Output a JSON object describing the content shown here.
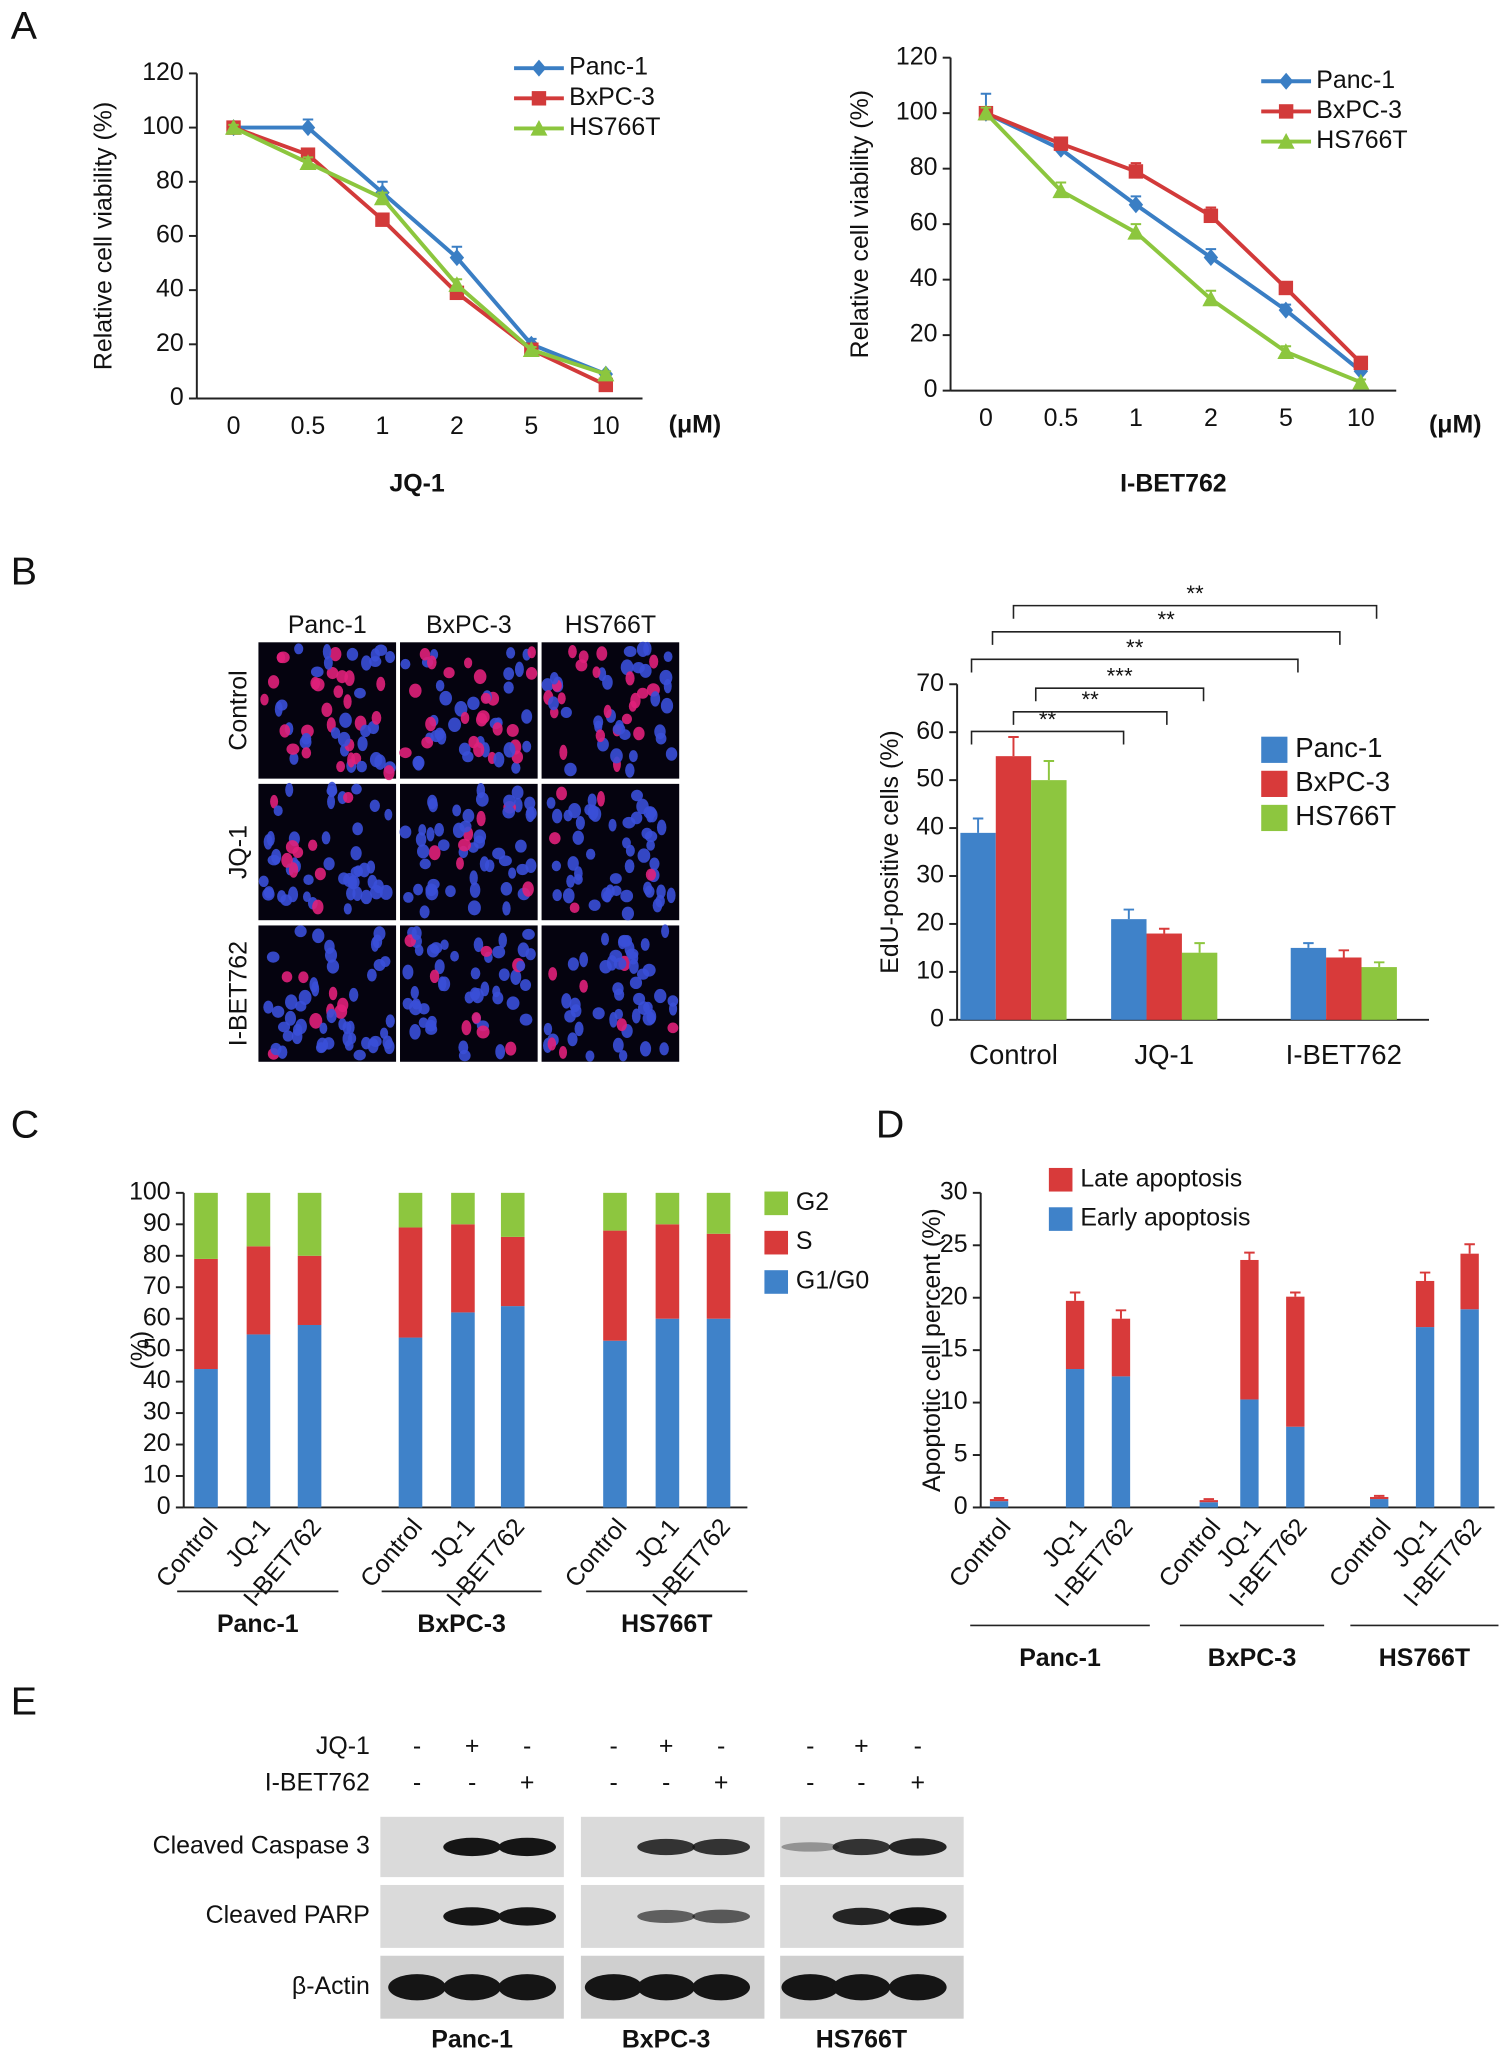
{
  "panels": [
    "A",
    "B",
    "C",
    "D",
    "E"
  ],
  "chart_data": [
    {
      "type": "line",
      "ylabel": "Relative cell viability (%)",
      "xlabel": "JQ-1",
      "x_unit": "(μM)",
      "categories": [
        "0",
        "0.5",
        "1",
        "2",
        "5",
        "10"
      ],
      "ylim": [
        0,
        120
      ],
      "yticks": [
        0,
        20,
        40,
        60,
        80,
        100,
        120
      ],
      "series": [
        {
          "name": "Panc-1",
          "color": "#3a7ec4",
          "marker": "diamond",
          "values": [
            100,
            100,
            76,
            52,
            20,
            9
          ],
          "errors": [
            1,
            3,
            4,
            4,
            2,
            1
          ]
        },
        {
          "name": "BxPC-3",
          "color": "#d23a3a",
          "marker": "square",
          "values": [
            100,
            90,
            66,
            39,
            18,
            5
          ],
          "errors": [
            1,
            2,
            2,
            2,
            1,
            1
          ]
        },
        {
          "name": "HS766T",
          "color": "#8cc63e",
          "marker": "triangle",
          "values": [
            100,
            87,
            74,
            42,
            18,
            9
          ],
          "errors": [
            1,
            2,
            2,
            2,
            1,
            1
          ]
        }
      ]
    },
    {
      "type": "line",
      "ylabel": "Relative cell viability (%)",
      "xlabel": "I-BET762",
      "x_unit": "(μM)",
      "categories": [
        "0",
        "0.5",
        "1",
        "2",
        "5",
        "10"
      ],
      "ylim": [
        0,
        120
      ],
      "yticks": [
        0,
        20,
        40,
        60,
        80,
        100,
        120
      ],
      "series": [
        {
          "name": "Panc-1",
          "color": "#3a7ec4",
          "marker": "diamond",
          "values": [
            100,
            87,
            67,
            48,
            29,
            7
          ],
          "errors": [
            7,
            2,
            3,
            3,
            2,
            1
          ]
        },
        {
          "name": "BxPC-3",
          "color": "#d23a3a",
          "marker": "square",
          "values": [
            100,
            89,
            79,
            63,
            37,
            10
          ],
          "errors": [
            2,
            2,
            3,
            3,
            2,
            1
          ]
        },
        {
          "name": "HS766T",
          "color": "#8cc63e",
          "marker": "triangle",
          "values": [
            100,
            72,
            57,
            33,
            14,
            3
          ],
          "errors": [
            2,
            3,
            3,
            3,
            2,
            1
          ]
        }
      ]
    },
    {
      "type": "bar",
      "ylabel": "EdU-positive cells (%)",
      "categories": [
        "Control",
        "JQ-1",
        "I-BET762"
      ],
      "ylim": [
        0,
        70
      ],
      "yticks": [
        0,
        10,
        20,
        30,
        40,
        50,
        60,
        70
      ],
      "series": [
        {
          "name": "Panc-1",
          "color": "#3f82c9",
          "values": [
            39,
            21,
            15
          ],
          "errors": [
            3,
            2,
            1
          ]
        },
        {
          "name": "BxPC-3",
          "color": "#d83a3a",
          "values": [
            55,
            18,
            13
          ],
          "errors": [
            4,
            1,
            1.5
          ]
        },
        {
          "name": "HS766T",
          "color": "#8dc63f",
          "values": [
            50,
            14,
            11
          ],
          "errors": [
            4,
            2,
            1
          ]
        }
      ],
      "annotations": [
        "**",
        "**",
        "**",
        "***",
        "**",
        "**"
      ]
    },
    {
      "type": "stacked_bar",
      "ylabel": "(%)",
      "groups": [
        "Panc-1",
        "BxPC-3",
        "HS766T"
      ],
      "categories": [
        "Control",
        "JQ-1",
        "I-BET762",
        "Control",
        "JQ-1",
        "I-BET762",
        "Control",
        "JQ-1",
        "I-BET762"
      ],
      "ylim": [
        0,
        100
      ],
      "yticks": [
        0,
        10,
        20,
        30,
        40,
        50,
        60,
        70,
        80,
        90,
        100
      ],
      "series": [
        {
          "name": "G1/G0",
          "color": "#3f82c9",
          "values": [
            44,
            55,
            58,
            54,
            62,
            64,
            53,
            60,
            60
          ]
        },
        {
          "name": "S",
          "color": "#d83a3a",
          "values": [
            35,
            28,
            22,
            35,
            28,
            22,
            35,
            30,
            27
          ]
        },
        {
          "name": "G2",
          "color": "#8dc63f",
          "values": [
            21,
            17,
            20,
            11,
            10,
            14,
            12,
            10,
            13
          ]
        }
      ]
    },
    {
      "type": "stacked_bar",
      "ylabel": "Apoptotic cell percent (%)",
      "groups": [
        "Panc-1",
        "BxPC-3",
        "HS766T"
      ],
      "categories": [
        "Control",
        "JQ-1",
        "I-BET762",
        "Control",
        "JQ-1",
        "I-BET762",
        "Control",
        "JQ-1",
        "I-BET762"
      ],
      "ylim": [
        0,
        30
      ],
      "yticks": [
        0,
        5,
        10,
        15,
        20,
        25,
        30
      ],
      "series": [
        {
          "name": "Early apoptosis",
          "color": "#3f82c9",
          "values": [
            0.6,
            13.2,
            12.5,
            0.5,
            10.3,
            7.7,
            0.8,
            17.2,
            18.9
          ]
        },
        {
          "name": "Late apoptosis",
          "color": "#d83a3a",
          "values": [
            0.2,
            6.5,
            5.5,
            0.2,
            13.3,
            12.4,
            0.2,
            4.4,
            5.3
          ],
          "errors": [
            0.1,
            0.8,
            0.8,
            0.1,
            0.7,
            0.4,
            0.1,
            0.8,
            0.9
          ]
        }
      ]
    }
  ],
  "microscopy": {
    "columns": [
      "Panc-1",
      "BxPC-3",
      "HS766T"
    ],
    "rows": [
      "Control",
      "JQ-1",
      "I-BET762"
    ]
  },
  "western_blot": {
    "treatments": [
      {
        "name": "JQ-1",
        "signs": [
          "-",
          "+",
          "-",
          "-",
          "+",
          "-",
          "-",
          "+",
          "-"
        ]
      },
      {
        "name": "I-BET762",
        "signs": [
          "-",
          "-",
          "+",
          "-",
          "-",
          "+",
          "-",
          "-",
          "+"
        ]
      }
    ],
    "rows": [
      "Cleaved Caspase 3",
      "Cleaved PARP",
      "β-Actin"
    ],
    "cell_lines": [
      "Panc-1",
      "BxPC-3",
      "HS766T"
    ]
  }
}
